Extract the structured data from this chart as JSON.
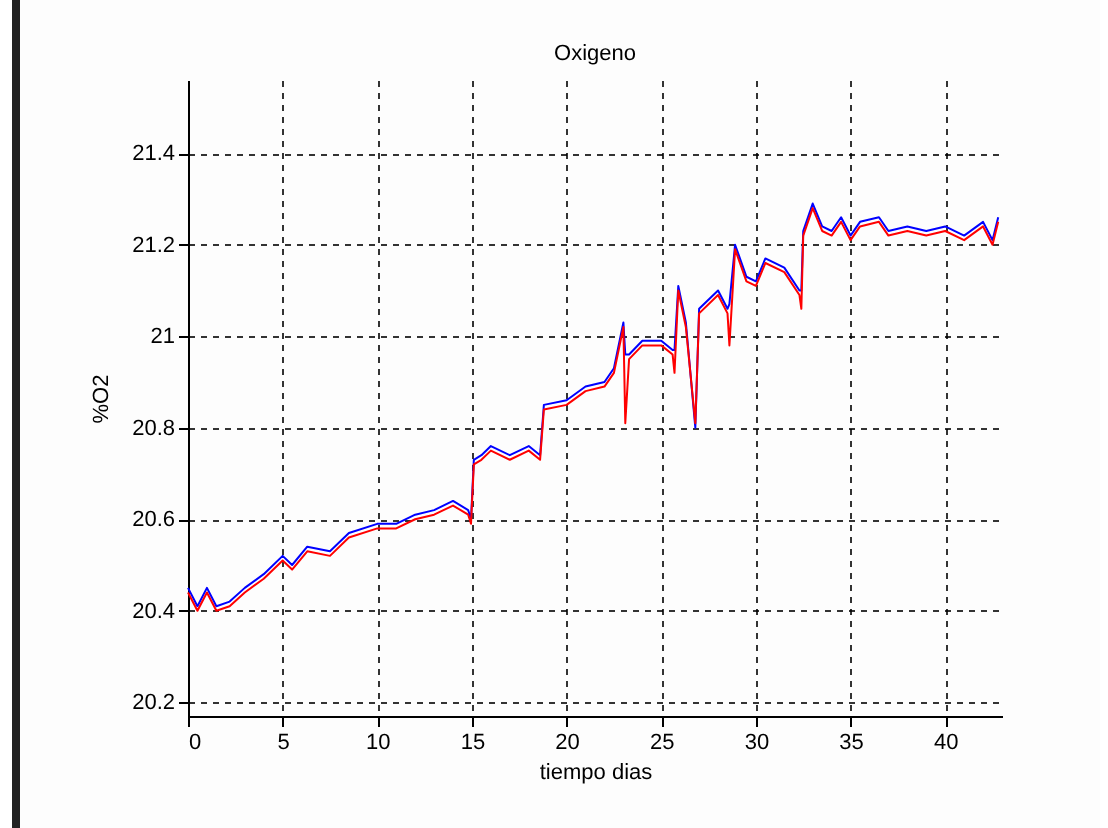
{
  "chart_data": {
    "type": "line",
    "title": "Oxigeno",
    "xlabel": "tiempo dias",
    "ylabel": "%O2",
    "xlim": [
      0,
      43
    ],
    "xticks": [
      0,
      5,
      10,
      15,
      20,
      25,
      30,
      35,
      40
    ],
    "ylim": [
      20.17,
      21.56
    ],
    "yticks": [
      20.2,
      20.4,
      20.6,
      20.8,
      21,
      21.2,
      21.4
    ],
    "grid": true,
    "line_style": "solid",
    "marker": "none",
    "x": [
      0,
      0.5,
      1,
      1.5,
      2.2,
      3,
      4,
      5,
      5.5,
      6.3,
      7.5,
      8.5,
      10,
      11,
      12,
      13,
      14,
      14.8,
      14.95,
      15.1,
      15.5,
      16,
      17,
      18,
      18.6,
      18.8,
      20,
      21,
      22,
      22.5,
      23,
      23.1,
      23.3,
      24,
      25,
      25.6,
      25.7,
      25.9,
      26.3,
      26.8,
      27,
      28,
      28.5,
      28.6,
      28.9,
      29.5,
      30,
      30.5,
      31.5,
      32.3,
      32.4,
      32.5,
      33,
      33.5,
      34,
      34.5,
      35,
      35.5,
      36.5,
      37,
      38,
      39,
      40,
      41,
      42,
      42.5,
      42.8
    ],
    "series": [
      {
        "color": "#0000ff",
        "values": [
          20.45,
          20.41,
          20.45,
          20.41,
          20.42,
          20.45,
          20.48,
          20.52,
          20.5,
          20.54,
          20.53,
          20.57,
          20.59,
          20.59,
          20.61,
          20.62,
          20.64,
          20.62,
          20.6,
          20.73,
          20.74,
          20.76,
          20.74,
          20.76,
          20.74,
          20.85,
          20.86,
          20.89,
          20.9,
          20.93,
          21.03,
          20.96,
          20.96,
          20.99,
          20.99,
          20.97,
          20.97,
          21.11,
          21.03,
          20.8,
          21.06,
          21.1,
          21.06,
          21.07,
          21.2,
          21.13,
          21.12,
          21.17,
          21.15,
          21.1,
          21.1,
          21.23,
          21.29,
          21.24,
          21.23,
          21.26,
          21.22,
          21.25,
          21.26,
          21.23,
          21.24,
          21.23,
          21.24,
          21.22,
          21.25,
          21.21,
          21.26
        ]
      },
      {
        "color": "#ff0000",
        "values": [
          20.44,
          20.4,
          20.44,
          20.4,
          20.41,
          20.44,
          20.47,
          20.51,
          20.49,
          20.53,
          20.52,
          20.56,
          20.58,
          20.58,
          20.6,
          20.61,
          20.63,
          20.61,
          20.59,
          20.72,
          20.73,
          20.75,
          20.73,
          20.75,
          20.73,
          20.84,
          20.85,
          20.88,
          20.89,
          20.92,
          21.02,
          20.81,
          20.95,
          20.98,
          20.98,
          20.96,
          20.92,
          21.1,
          21.02,
          20.81,
          21.05,
          21.09,
          21.05,
          20.98,
          21.19,
          21.12,
          21.11,
          21.16,
          21.14,
          21.09,
          21.06,
          21.22,
          21.28,
          21.23,
          21.22,
          21.25,
          21.21,
          21.24,
          21.25,
          21.22,
          21.23,
          21.22,
          21.23,
          21.21,
          21.24,
          21.2,
          21.25
        ]
      }
    ]
  }
}
